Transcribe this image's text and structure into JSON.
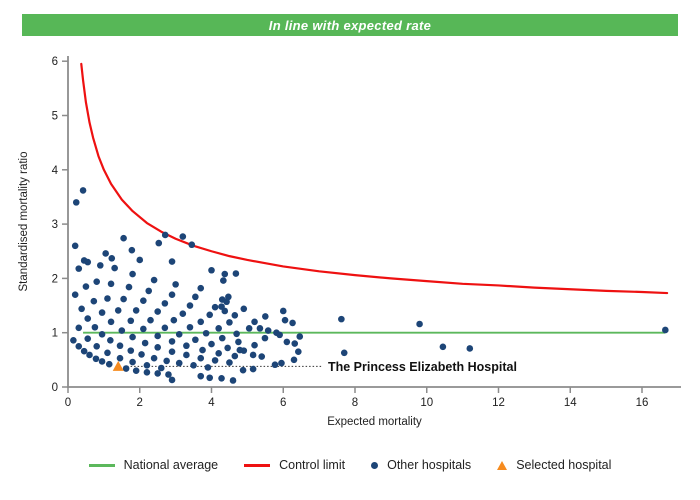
{
  "banner": {
    "title": "In line with expected rate",
    "bg_color": "#57b757",
    "text_color": "#ffffff"
  },
  "chart_data": {
    "type": "scatter",
    "title": "In line with expected rate",
    "xlabel": "Expected mortality",
    "ylabel": "Standardised mortality ratio",
    "xlim": [
      0,
      17.06
    ],
    "ylim": [
      0,
      6.06
    ],
    "x_ticks": [
      0,
      2,
      4,
      6,
      8,
      10,
      12,
      14,
      16
    ],
    "y_ticks": [
      0,
      1,
      2,
      3,
      4,
      5,
      6
    ],
    "grid": false,
    "legend_position": "bottom",
    "national_average": {
      "label": "National average",
      "y": 1,
      "x_start": 0.42,
      "x_end": 16.65,
      "color": "#5cb85c"
    },
    "control_limit": {
      "label": "Control limit",
      "color": "#ee1111",
      "points": [
        [
          0.37,
          5.95
        ],
        [
          0.42,
          5.65
        ],
        [
          0.5,
          5.24
        ],
        [
          0.6,
          4.87
        ],
        [
          0.7,
          4.59
        ],
        [
          0.85,
          4.25
        ],
        [
          1.0,
          4.0
        ],
        [
          1.2,
          3.74
        ],
        [
          1.5,
          3.45
        ],
        [
          1.8,
          3.24
        ],
        [
          2.2,
          3.02
        ],
        [
          2.6,
          2.86
        ],
        [
          3.0,
          2.73
        ],
        [
          3.5,
          2.6
        ],
        [
          4.0,
          2.5
        ],
        [
          4.5,
          2.41
        ],
        [
          5.0,
          2.34
        ],
        [
          5.5,
          2.28
        ],
        [
          6.0,
          2.22
        ],
        [
          7.0,
          2.13
        ],
        [
          8.0,
          2.06
        ],
        [
          9.0,
          2.0
        ],
        [
          10.0,
          1.95
        ],
        [
          11.0,
          1.9
        ],
        [
          12.0,
          1.87
        ],
        [
          13.0,
          1.83
        ],
        [
          14.0,
          1.8
        ],
        [
          15.0,
          1.77
        ],
        [
          16.0,
          1.75
        ],
        [
          16.7,
          1.73
        ]
      ]
    },
    "other_hospitals": {
      "label": "Other hospitals",
      "color": "#1d4577",
      "points": [
        [
          0.15,
          0.86
        ],
        [
          0.3,
          0.75
        ],
        [
          0.45,
          0.66
        ],
        [
          0.6,
          0.59
        ],
        [
          0.78,
          0.52
        ],
        [
          0.95,
          0.47
        ],
        [
          1.15,
          0.42
        ],
        [
          1.62,
          0.34
        ],
        [
          1.9,
          0.3
        ],
        [
          2.2,
          0.27
        ],
        [
          2.5,
          0.25
        ],
        [
          2.8,
          0.23
        ],
        [
          0.3,
          1.09
        ],
        [
          0.55,
          0.89
        ],
        [
          0.8,
          0.75
        ],
        [
          1.1,
          0.63
        ],
        [
          1.45,
          0.53
        ],
        [
          1.8,
          0.46
        ],
        [
          2.2,
          0.4
        ],
        [
          2.6,
          0.35
        ],
        [
          0.2,
          1.7
        ],
        [
          0.38,
          1.44
        ],
        [
          0.55,
          1.26
        ],
        [
          0.75,
          1.1
        ],
        [
          0.95,
          0.97
        ],
        [
          1.18,
          0.86
        ],
        [
          1.45,
          0.76
        ],
        [
          1.75,
          0.67
        ],
        [
          2.05,
          0.6
        ],
        [
          2.4,
          0.53
        ],
        [
          2.75,
          0.48
        ],
        [
          3.1,
          0.44
        ],
        [
          3.5,
          0.4
        ],
        [
          3.9,
          0.36
        ],
        [
          0.3,
          2.18
        ],
        [
          0.5,
          1.85
        ],
        [
          0.72,
          1.58
        ],
        [
          0.95,
          1.37
        ],
        [
          1.2,
          1.2
        ],
        [
          1.5,
          1.04
        ],
        [
          1.8,
          0.92
        ],
        [
          2.15,
          0.81
        ],
        [
          2.5,
          0.73
        ],
        [
          2.9,
          0.65
        ],
        [
          3.3,
          0.59
        ],
        [
          3.7,
          0.53
        ],
        [
          4.1,
          0.49
        ],
        [
          4.5,
          0.45
        ],
        [
          0.55,
          2.3
        ],
        [
          0.8,
          1.94
        ],
        [
          1.1,
          1.63
        ],
        [
          1.4,
          1.41
        ],
        [
          1.75,
          1.22
        ],
        [
          2.1,
          1.07
        ],
        [
          2.5,
          0.94
        ],
        [
          2.9,
          0.84
        ],
        [
          3.3,
          0.76
        ],
        [
          3.75,
          0.68
        ],
        [
          4.2,
          0.62
        ],
        [
          4.65,
          0.57
        ],
        [
          0.9,
          2.24
        ],
        [
          1.2,
          1.9
        ],
        [
          1.55,
          1.62
        ],
        [
          1.9,
          1.41
        ],
        [
          2.3,
          1.23
        ],
        [
          2.7,
          1.09
        ],
        [
          3.1,
          0.97
        ],
        [
          3.55,
          0.87
        ],
        [
          4.0,
          0.79
        ],
        [
          4.45,
          0.72
        ],
        [
          4.9,
          0.67
        ],
        [
          1.3,
          2.19
        ],
        [
          1.7,
          1.84
        ],
        [
          2.1,
          1.59
        ],
        [
          2.5,
          1.39
        ],
        [
          2.95,
          1.23
        ],
        [
          3.4,
          1.1
        ],
        [
          3.85,
          0.99
        ],
        [
          4.3,
          0.9
        ],
        [
          4.75,
          0.83
        ],
        [
          5.2,
          0.77
        ],
        [
          1.8,
          2.08
        ],
        [
          2.25,
          1.77
        ],
        [
          2.7,
          1.54
        ],
        [
          3.2,
          1.35
        ],
        [
          3.7,
          1.2
        ],
        [
          4.2,
          1.08
        ],
        [
          4.7,
          0.98
        ],
        [
          2.4,
          1.97
        ],
        [
          2.9,
          1.7
        ],
        [
          3.4,
          1.5
        ],
        [
          3.95,
          1.33
        ],
        [
          4.5,
          1.19
        ],
        [
          5.05,
          1.08
        ],
        [
          3.0,
          1.89
        ],
        [
          3.55,
          1.66
        ],
        [
          4.1,
          1.47
        ],
        [
          4.65,
          1.32
        ],
        [
          5.2,
          1.2
        ],
        [
          3.7,
          1.82
        ],
        [
          4.3,
          1.61
        ],
        [
          4.9,
          1.44
        ],
        [
          5.5,
          1.3
        ],
        [
          0.23,
          3.4
        ],
        [
          0.42,
          3.62
        ],
        [
          0.2,
          2.6
        ],
        [
          0.45,
          2.33
        ],
        [
          1.05,
          2.46
        ],
        [
          1.22,
          2.37
        ],
        [
          1.55,
          2.74
        ],
        [
          1.78,
          2.52
        ],
        [
          2.0,
          2.34
        ],
        [
          2.53,
          2.65
        ],
        [
          2.71,
          2.8
        ],
        [
          2.9,
          2.31
        ],
        [
          3.2,
          2.77
        ],
        [
          3.45,
          2.62
        ],
        [
          4.0,
          2.15
        ],
        [
          4.37,
          2.08
        ],
        [
          4.68,
          2.09
        ],
        [
          4.33,
          1.96
        ],
        [
          4.47,
          1.66
        ],
        [
          4.42,
          1.57
        ],
        [
          4.28,
          1.48
        ],
        [
          4.37,
          1.4
        ],
        [
          5.35,
          1.08
        ],
        [
          5.58,
          1.04
        ],
        [
          5.81,
          1.0
        ],
        [
          5.9,
          0.96
        ],
        [
          5.49,
          0.9
        ],
        [
          4.79,
          0.68
        ],
        [
          5.16,
          0.59
        ],
        [
          5.4,
          0.56
        ],
        [
          5.77,
          0.41
        ],
        [
          5.95,
          0.44
        ],
        [
          4.88,
          0.31
        ],
        [
          5.16,
          0.33
        ],
        [
          2.9,
          0.13
        ],
        [
          3.7,
          0.2
        ],
        [
          3.95,
          0.17
        ],
        [
          4.28,
          0.16
        ],
        [
          4.6,
          0.12
        ],
        [
          6.0,
          1.4
        ],
        [
          6.05,
          1.23
        ],
        [
          6.26,
          1.18
        ],
        [
          6.46,
          0.93
        ],
        [
          6.32,
          0.8
        ],
        [
          6.1,
          0.83
        ],
        [
          6.42,
          0.65
        ],
        [
          6.3,
          0.5
        ],
        [
          7.62,
          1.25
        ],
        [
          7.7,
          0.63
        ],
        [
          9.8,
          1.16
        ],
        [
          10.45,
          0.74
        ],
        [
          11.2,
          0.71
        ],
        [
          16.65,
          1.05
        ]
      ]
    },
    "selected_hospital": {
      "label": "Selected hospital",
      "color": "#f68b1f",
      "x": 1.4,
      "y": 0.38
    },
    "annotation": {
      "label": "The Princess Elizabeth Hospital",
      "y": 0.38,
      "line_x_start": 1.55,
      "line_x_end": 7.08
    }
  },
  "legend": {
    "items": [
      {
        "label": "National average",
        "type": "line",
        "color": "#5cb85c"
      },
      {
        "label": "Control limit",
        "type": "line",
        "color": "#ee1111"
      },
      {
        "label": "Other hospitals",
        "type": "dot",
        "color": "#1d4577"
      },
      {
        "label": "Selected hospital",
        "type": "triangle",
        "color": "#f68b1f"
      }
    ]
  },
  "style": {
    "axis_color": "#8c8c8c",
    "tick_text_color": "#222222",
    "annotation_text_color": "#111111"
  }
}
